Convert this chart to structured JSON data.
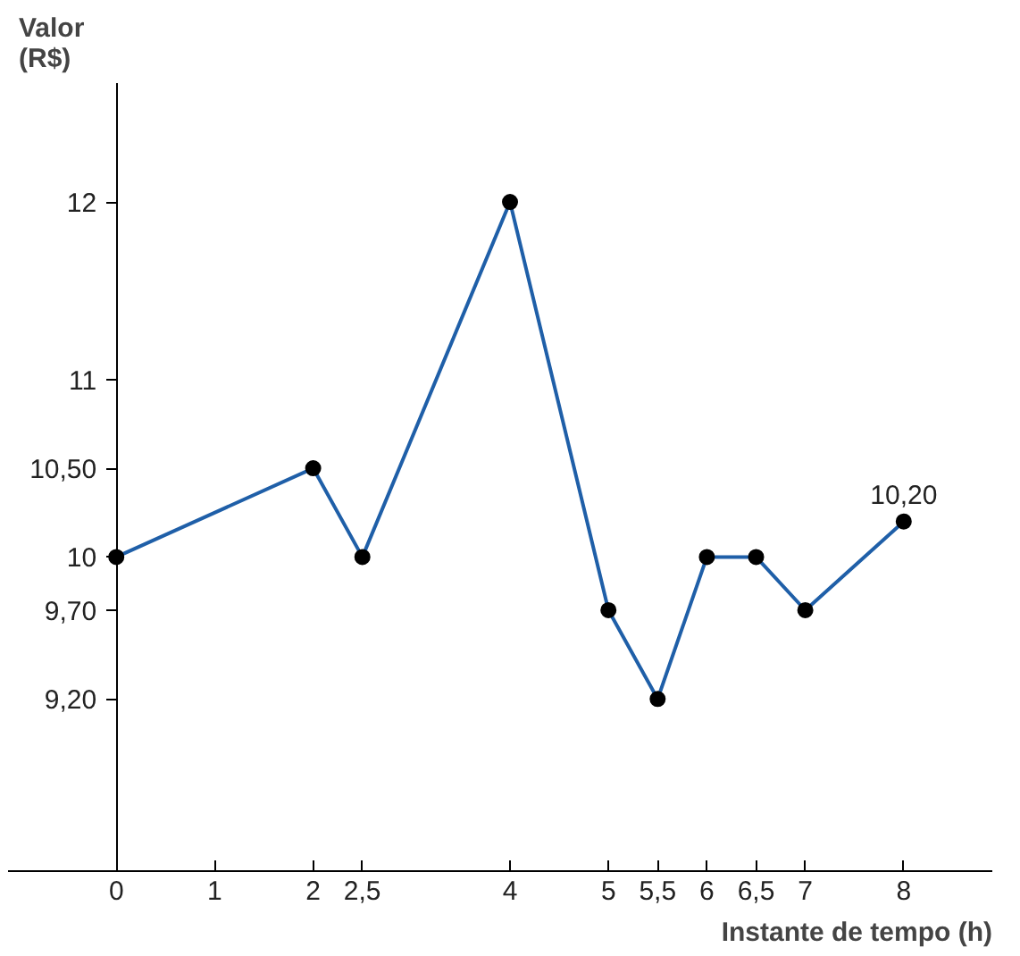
{
  "chart_data": {
    "type": "line",
    "xlabel": "Instante de tempo (h)",
    "ylabel": "Valor\n(R$)",
    "x": [
      0,
      2,
      2.5,
      4,
      5,
      5.5,
      6,
      6.5,
      7,
      8
    ],
    "series": [
      {
        "color": "#1f5fa8",
        "values": [
          10,
          10.5,
          10,
          12,
          9.7,
          9.2,
          10,
          10,
          9.7,
          10.2
        ]
      }
    ],
    "xlim": [
      -1.1,
      8.9
    ],
    "ylim": [
      8.23,
      12.67
    ],
    "xticks": [
      0,
      1,
      2,
      {
        "value": 2.5,
        "label": "2,5"
      },
      4,
      5,
      {
        "value": 5.5,
        "label": "5,5"
      },
      6,
      {
        "value": 6.5,
        "label": "6,5"
      },
      7,
      8
    ],
    "yticks": [
      {
        "value": 9.2,
        "label": "9,20"
      },
      {
        "value": 9.7,
        "label": "9,70"
      },
      10,
      {
        "value": 10.5,
        "label": "10,50"
      },
      11,
      12
    ],
    "annotations": [
      {
        "text": "10,20",
        "x": 8,
        "y": 10.2
      }
    ],
    "marker": "circle",
    "grid": false,
    "line_style": "solid"
  }
}
